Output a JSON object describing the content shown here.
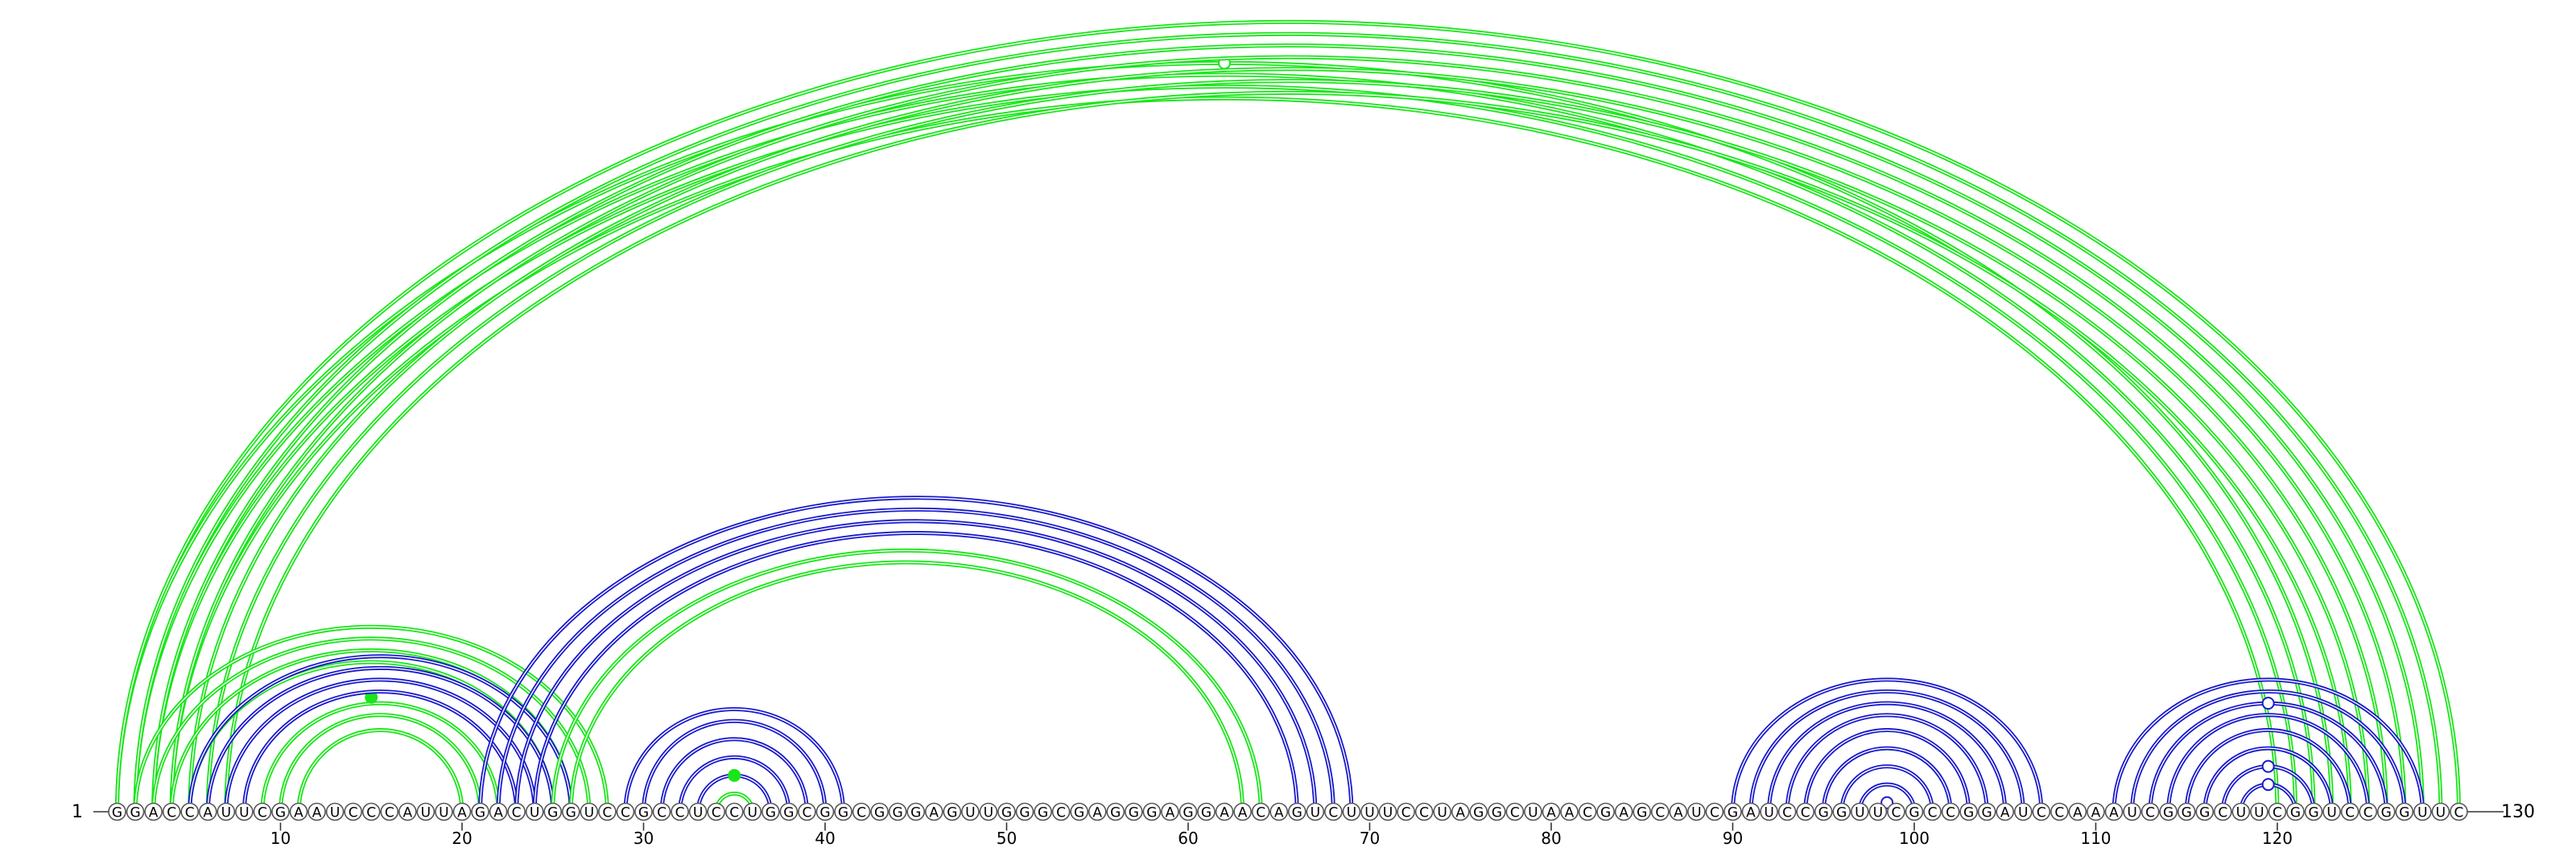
{
  "sequence": "GGACCAUUCGAAUCCCAUUAGACUGGUCCGCCUCCUGGCGGCGGGAGUUGGGCGAGGGAGGAACAGUCUUUCCUAGGCUAACGAGCAUCGAUCCGGUUCGCCGGAUCCAAAUCGGGCUUCGGUCCGGUUC",
  "start_label": "1",
  "end_label": "130",
  "tick_labels": [
    "10",
    "20",
    "30",
    "40",
    "50",
    "60",
    "70",
    "80",
    "90",
    "100",
    "110",
    "120"
  ],
  "colors": {
    "green": "#19e619",
    "blue": "#1a1acc",
    "nucleotide_stroke": "#555555"
  },
  "arc_groups": [
    {
      "color": "green",
      "pairs": [
        [
          1,
          123
        ],
        [
          2,
          122
        ],
        [
          3,
          121
        ],
        [
          4,
          120
        ]
      ],
      "marker": {
        "pos": "top",
        "style": "open",
        "arc": [
          1,
          123
        ]
      }
    },
    {
      "color": "green",
      "pairs": [
        [
          1,
          130
        ],
        [
          2,
          129
        ],
        [
          3,
          128
        ],
        [
          4,
          127
        ],
        [
          5,
          126
        ],
        [
          6,
          125
        ],
        [
          7,
          124
        ]
      ]
    },
    {
      "color": "green",
      "pairs": [
        [
          2,
          28
        ],
        [
          3,
          27
        ],
        [
          4,
          26
        ],
        [
          5,
          25
        ]
      ]
    },
    {
      "color": "green",
      "pairs": [
        [
          9,
          22
        ],
        [
          10,
          21
        ],
        [
          11,
          20
        ]
      ],
      "marker": {
        "pos": "top",
        "style": "filled",
        "arc": [
          8,
          22
        ]
      }
    },
    {
      "color": "blue",
      "pairs": [
        [
          5,
          26
        ],
        [
          6,
          25
        ],
        [
          7,
          24
        ],
        [
          8,
          23
        ]
      ]
    },
    {
      "color": "blue",
      "pairs": [
        [
          21,
          69
        ],
        [
          22,
          68
        ],
        [
          23,
          67
        ],
        [
          24,
          66
        ]
      ]
    },
    {
      "color": "green",
      "pairs": [
        [
          25,
          64
        ],
        [
          26,
          63
        ]
      ]
    },
    {
      "color": "blue",
      "pairs": [
        [
          29,
          41
        ],
        [
          30,
          40
        ],
        [
          31,
          39
        ],
        [
          32,
          38
        ],
        [
          33,
          37
        ]
      ]
    },
    {
      "color": "green",
      "pairs": [
        [
          34,
          36
        ]
      ],
      "marker": {
        "pos": "top",
        "style": "filled",
        "arc": [
          33,
          37
        ]
      }
    },
    {
      "color": "blue",
      "pairs": [
        [
          90,
          107
        ],
        [
          91,
          106
        ],
        [
          92,
          105
        ],
        [
          93,
          104
        ],
        [
          94,
          103
        ],
        [
          95,
          102
        ],
        [
          96,
          101
        ],
        [
          97,
          100
        ]
      ],
      "marker": {
        "pos": "top",
        "style": "open",
        "arc": [
          98,
          99
        ]
      }
    },
    {
      "color": "blue",
      "pairs": [
        [
          111,
          128
        ],
        [
          112,
          127
        ],
        [
          113,
          126
        ],
        [
          114,
          125
        ],
        [
          115,
          124
        ],
        [
          116,
          123
        ],
        [
          117,
          122
        ],
        [
          118,
          121
        ]
      ],
      "markers": [
        {
          "pos": "top",
          "style": "open",
          "arc": [
            113,
            126
          ]
        },
        {
          "pos": "top",
          "style": "open",
          "arc": [
            117,
            122
          ]
        },
        {
          "pos": "top",
          "style": "open",
          "arc": [
            118,
            121
          ]
        }
      ]
    }
  ]
}
